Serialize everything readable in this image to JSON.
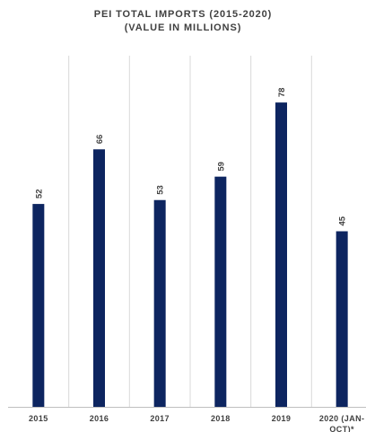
{
  "chart_data": {
    "type": "bar",
    "title": "PEI TOTAL IMPORTS (2015-2020)",
    "subtitle": "(VALUE IN MILLIONS)",
    "categories": [
      "2015",
      "2016",
      "2017",
      "2018",
      "2019",
      "2020 (JAN-OCT)*"
    ],
    "category_lines": [
      [
        "2015"
      ],
      [
        "2016"
      ],
      [
        "2017"
      ],
      [
        "2018"
      ],
      [
        "2019"
      ],
      [
        "2020 (JAN-",
        "OCT)*"
      ]
    ],
    "values": [
      52,
      66,
      53,
      59,
      78,
      45
    ],
    "data_labels": [
      "52",
      "66",
      "53",
      "59",
      "78",
      "45"
    ],
    "xlabel": "",
    "ylabel": "",
    "ylim": [
      0,
      90
    ],
    "grid": "vertical",
    "legend": "none",
    "bar_color": "#0d2560",
    "grid_color": "#d9d9d9"
  }
}
